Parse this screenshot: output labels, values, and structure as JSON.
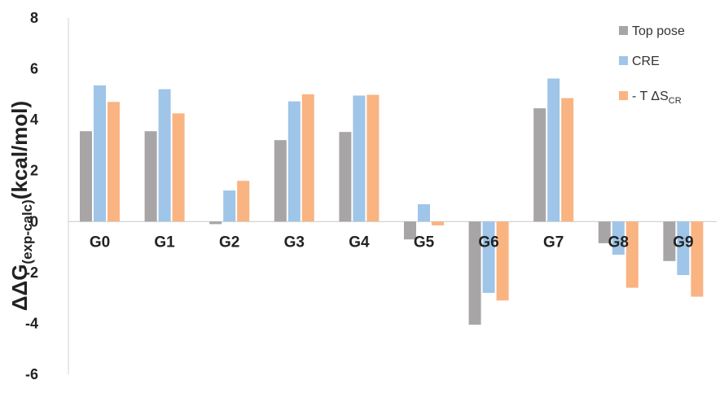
{
  "chart_data": {
    "type": "bar",
    "categories": [
      "G0",
      "G1",
      "G2",
      "G3",
      "G4",
      "G5",
      "G6",
      "G7",
      "G8",
      "G9"
    ],
    "series": [
      {
        "name": "Top pose",
        "color": "#a7a5a5",
        "values": [
          3.55,
          3.55,
          -0.1,
          3.2,
          3.52,
          -0.7,
          -4.05,
          4.45,
          -0.85,
          -1.55
        ]
      },
      {
        "name": "CRE",
        "color": "#9fc5e8",
        "values": [
          5.35,
          5.2,
          1.22,
          4.72,
          4.95,
          0.68,
          -2.8,
          5.62,
          -1.3,
          -2.1
        ]
      },
      {
        "name": "- T ΔS_CR",
        "color": "#f9b482",
        "legend_main": "- T ΔS",
        "legend_sub": "CR",
        "values": [
          4.7,
          4.25,
          1.6,
          5.0,
          4.98,
          -0.15,
          -3.1,
          4.85,
          -2.6,
          -2.95
        ]
      }
    ],
    "ylabel": {
      "main": "ΔΔG",
      "sub": "(exp-calc)",
      "tail": "(kcal/mol)"
    },
    "ylim": [
      -6,
      8
    ],
    "yticks": [
      -6,
      -4,
      -2,
      0,
      2,
      4,
      6,
      8
    ],
    "grid": false,
    "legend_position": "top-right",
    "category_labels_position": "just below zero line"
  }
}
